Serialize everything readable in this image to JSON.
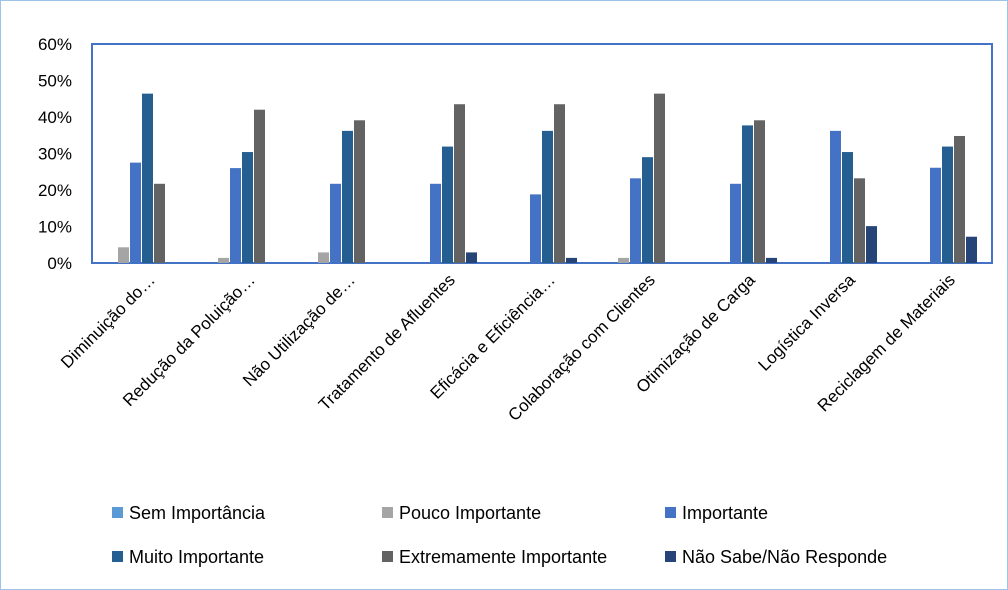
{
  "chart_data": {
    "type": "bar",
    "categories": [
      "Diminuição do…",
      "Redução da Poluição…",
      "Não Utilização de…",
      "Tratamento de Afluentes",
      "Eficácia e Eficiência…",
      "Colaboração com Clientes",
      "Otimização de Carga",
      "Logística Inversa",
      "Reciclagem de Materiais"
    ],
    "series": [
      {
        "name": "Sem Importância",
        "color": "#5b9bd5",
        "values": [
          0,
          0,
          0,
          0,
          0,
          0,
          0,
          0,
          0
        ]
      },
      {
        "name": "Pouco Importante",
        "color": "#a5a5a5",
        "values": [
          4.3,
          1.4,
          2.9,
          0,
          0,
          1.4,
          0,
          0,
          0
        ]
      },
      {
        "name": "Importante",
        "color": "#4472c4",
        "values": [
          27.5,
          26,
          21.7,
          21.7,
          18.8,
          23.2,
          21.7,
          36.2,
          26.1
        ]
      },
      {
        "name": "Muito Importante",
        "color": "#255e91",
        "values": [
          46.4,
          30.4,
          36.2,
          31.9,
          36.2,
          29,
          37.7,
          30.4,
          31.9
        ]
      },
      {
        "name": "Extremamente Importante",
        "color": "#636363",
        "values": [
          21.7,
          42,
          39.1,
          43.5,
          43.5,
          46.4,
          39.1,
          23.2,
          34.8
        ]
      },
      {
        "name": "Não Sabe/Não Responde",
        "color": "#264478",
        "values": [
          0,
          0,
          0,
          2.9,
          1.4,
          0,
          1.4,
          10.1,
          7.2
        ]
      }
    ],
    "y_ticks": [
      "0%",
      "10%",
      "20%",
      "30%",
      "40%",
      "50%",
      "60%"
    ],
    "ylim": [
      0,
      60
    ],
    "grid": false,
    "legend_position": "bottom",
    "plot_border_color": "#4472c4"
  }
}
